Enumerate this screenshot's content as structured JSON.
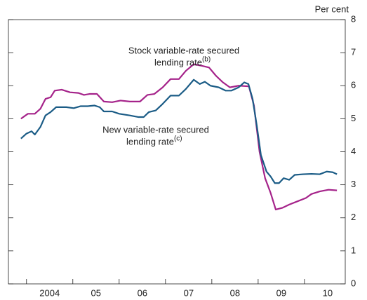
{
  "chart_data": {
    "type": "line",
    "y_label": "Per cent",
    "xlim": [
      2003.61,
      2010.88
    ],
    "ylim": [
      0,
      8
    ],
    "yticks": [
      0,
      1,
      2,
      3,
      4,
      5,
      6,
      7,
      8
    ],
    "xticks": [
      {
        "value": 2004.5,
        "label": "2004"
      },
      {
        "value": 2005.5,
        "label": "05"
      },
      {
        "value": 2006.5,
        "label": "06"
      },
      {
        "value": 2007.5,
        "label": "07"
      },
      {
        "value": 2008.5,
        "label": "08"
      },
      {
        "value": 2009.5,
        "label": "09"
      },
      {
        "value": 2010.5,
        "label": "10"
      }
    ],
    "xtick_marks": [
      2004,
      2005,
      2006,
      2007,
      2008,
      2009,
      2010
    ],
    "series": [
      {
        "color": "#a5238a",
        "x": [
          2003.88,
          2004.03,
          2004.18,
          2004.3,
          2004.41,
          2004.52,
          2004.61,
          2004.76,
          2004.94,
          2005.12,
          2005.24,
          2005.36,
          2005.52,
          2005.67,
          2005.85,
          2006.03,
          2006.23,
          2006.45,
          2006.61,
          2006.76,
          2006.94,
          2007.11,
          2007.29,
          2007.44,
          2007.61,
          2007.79,
          2007.94,
          2008.09,
          2008.24,
          2008.39,
          2008.58,
          2008.8,
          2008.91,
          2009.03,
          2009.15,
          2009.27,
          2009.38,
          2009.52,
          2009.67,
          2009.85,
          2010.03,
          2010.15,
          2010.33,
          2010.52,
          2010.7
        ],
        "values": [
          5.0,
          5.15,
          5.15,
          5.3,
          5.6,
          5.65,
          5.85,
          5.88,
          5.8,
          5.78,
          5.72,
          5.75,
          5.75,
          5.52,
          5.5,
          5.55,
          5.52,
          5.52,
          5.72,
          5.75,
          5.95,
          6.2,
          6.2,
          6.45,
          6.65,
          6.6,
          6.55,
          6.3,
          6.1,
          5.95,
          6.0,
          5.98,
          5.4,
          4.0,
          3.2,
          2.75,
          2.25,
          2.3,
          2.4,
          2.5,
          2.6,
          2.72,
          2.8,
          2.85,
          2.83
        ]
      },
      {
        "color": "#1b5c86",
        "x": [
          2003.88,
          2004.0,
          2004.11,
          2004.18,
          2004.3,
          2004.41,
          2004.52,
          2004.64,
          2004.86,
          2005.02,
          2005.17,
          2005.32,
          2005.47,
          2005.58,
          2005.67,
          2005.85,
          2006.0,
          2006.23,
          2006.42,
          2006.53,
          2006.64,
          2006.79,
          2006.94,
          2007.11,
          2007.29,
          2007.44,
          2007.61,
          2007.74,
          2007.85,
          2007.97,
          2008.15,
          2008.3,
          2008.42,
          2008.58,
          2008.7,
          2008.79,
          2008.88,
          2008.97,
          2009.06,
          2009.18,
          2009.27,
          2009.36,
          2009.45,
          2009.55,
          2009.67,
          2009.79,
          2009.97,
          2010.15,
          2010.33,
          2010.48,
          2010.61,
          2010.7
        ],
        "values": [
          4.4,
          4.55,
          4.62,
          4.52,
          4.75,
          5.1,
          5.2,
          5.35,
          5.35,
          5.32,
          5.38,
          5.38,
          5.4,
          5.35,
          5.22,
          5.22,
          5.15,
          5.1,
          5.05,
          5.05,
          5.2,
          5.25,
          5.45,
          5.7,
          5.7,
          5.9,
          6.18,
          6.05,
          6.12,
          6.0,
          5.95,
          5.85,
          5.85,
          5.95,
          6.1,
          6.05,
          5.6,
          4.8,
          3.9,
          3.4,
          3.25,
          3.05,
          3.05,
          3.2,
          3.15,
          3.3,
          3.32,
          3.33,
          3.32,
          3.4,
          3.38,
          3.32
        ]
      }
    ],
    "annotations": [
      {
        "lines": [
          "Stock variable-rate secured",
          "lending rate"
        ],
        "sup": "(b)"
      },
      {
        "lines": [
          "New variable-rate secured",
          "lending rate"
        ],
        "sup": "(c)"
      }
    ]
  }
}
